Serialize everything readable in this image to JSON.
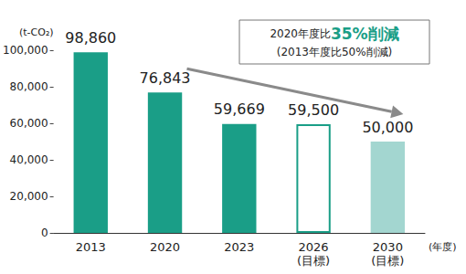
{
  "chart_data": {
    "type": "bar",
    "categories": [
      "2013",
      "2020",
      "2023",
      "2026\n(目標)",
      "2030\n(目標)"
    ],
    "values": [
      98860,
      76843,
      59669,
      59500,
      50000
    ],
    "value_labels": [
      "98,860",
      "76,843",
      "59,669",
      "59,500",
      "50,000"
    ],
    "data_labels": true,
    "color": "#1a9e87",
    "colors": [
      "#1a9e87",
      "#1a9e87",
      "#1a9e87",
      "#ffffff",
      "#a3d6d0"
    ],
    "ylabel": "(t-CO₂)",
    "xlabel": "(年度)",
    "ylim": [
      0,
      100000
    ],
    "yticks": [
      0,
      {
        "value": 20000,
        "label": "20,000"
      },
      {
        "value": 40000,
        "label": "40,000"
      },
      {
        "value": 60000,
        "label": "60,000"
      },
      {
        "value": 80000,
        "label": "80,000"
      },
      {
        "value": 100000,
        "label": "100,000"
      }
    ],
    "grid": false,
    "annotation": [
      "2020年度比",
      "35%削減",
      "(2013年度比50%削減)"
    ]
  }
}
